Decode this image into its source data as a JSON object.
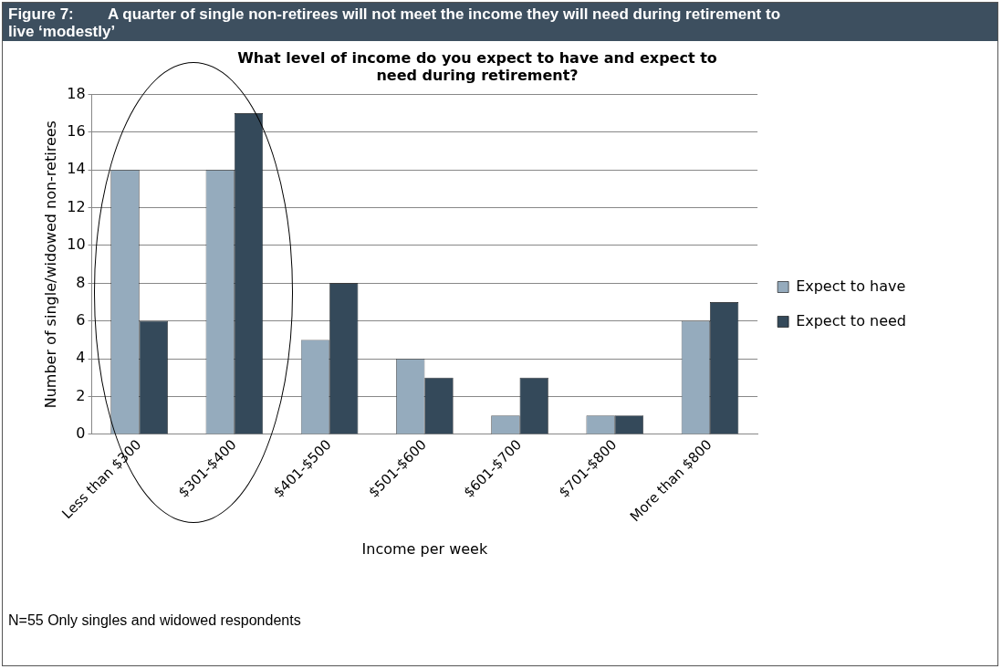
{
  "chart_data": {
    "type": "bar",
    "title": "Figure 7:        A quarter of single non-retirees will not meet the income they will need during retirement to live ‘modestly’",
    "subtitle": "What level of income do you expect to have and expect to need during retirement?",
    "xlabel": "Income per week",
    "ylabel": "Number of single/widowed non-retirees",
    "categories": [
      "Less than $300",
      "$301-$400",
      "$401-$500",
      "$501-$600",
      "$601-$700",
      "$701-$800",
      "More than $800"
    ],
    "series": [
      {
        "name": "Expect to have",
        "color": "#95abbd",
        "values": [
          14,
          14,
          5,
          4,
          1,
          1,
          6
        ]
      },
      {
        "name": "Expect to need",
        "color": "#34495a",
        "values": [
          6,
          17,
          8,
          3,
          3,
          1,
          7
        ]
      }
    ],
    "ylim": [
      0,
      18
    ],
    "yticks": [
      0,
      2,
      4,
      6,
      8,
      10,
      12,
      14,
      16,
      18
    ],
    "grid": "y",
    "legend": "right",
    "annotations": [
      "N=55 Only singles and widowed respondents"
    ]
  }
}
